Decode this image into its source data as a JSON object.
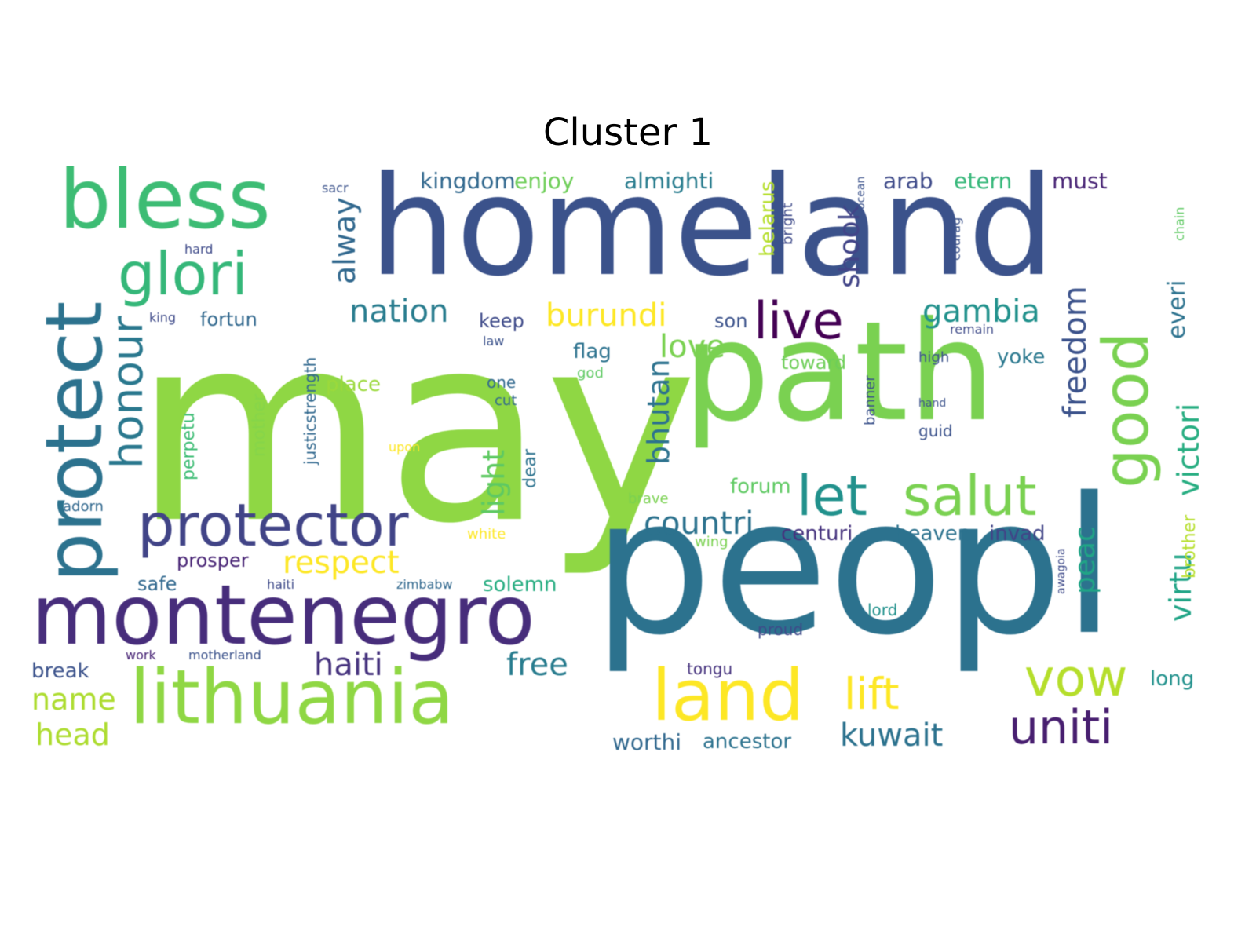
{
  "title": "Cluster 1",
  "palette": [
    "#440154",
    "#472d7b",
    "#3b528b",
    "#2c728e",
    "#21918c",
    "#28ae80",
    "#5ec962",
    "#addc30",
    "#fde725"
  ],
  "words": [
    {
      "text": "may",
      "color": "#8fd744"
    },
    {
      "text": "homeland",
      "color": "#3b528b"
    },
    {
      "text": "peopl",
      "color": "#2c728e"
    },
    {
      "text": "path",
      "color": "#7ad151"
    },
    {
      "text": "bless",
      "color": "#3dbc74"
    },
    {
      "text": "protect",
      "color": "#2c728e"
    },
    {
      "text": "montenegro",
      "color": "#472d7b"
    },
    {
      "text": "lithuania",
      "color": "#8fd744"
    },
    {
      "text": "protector",
      "color": "#414487"
    },
    {
      "text": "glori",
      "color": "#35b779"
    },
    {
      "text": "good",
      "color": "#7ad151"
    },
    {
      "text": "land",
      "color": "#fde725"
    },
    {
      "text": "let",
      "color": "#21918c"
    },
    {
      "text": "salut",
      "color": "#7ad151"
    },
    {
      "text": "live",
      "color": "#440154"
    },
    {
      "text": "vow",
      "color": "#b5de2b"
    },
    {
      "text": "uniti",
      "color": "#481f70"
    },
    {
      "text": "lift",
      "color": "#fde725"
    },
    {
      "text": "honour",
      "color": "#2a788e"
    },
    {
      "text": "haiti",
      "color": "#46337e"
    },
    {
      "text": "free",
      "color": "#287c8e"
    },
    {
      "text": "kuwait",
      "color": "#2c728e"
    },
    {
      "text": "gambia",
      "color": "#21918c"
    },
    {
      "text": "nation",
      "color": "#287c8e"
    },
    {
      "text": "burundi",
      "color": "#fde725"
    },
    {
      "text": "countri",
      "color": "#2c728e"
    },
    {
      "text": "respect",
      "color": "#fde725"
    },
    {
      "text": "love",
      "color": "#7ad151"
    },
    {
      "text": "freedom",
      "color": "#3b528b"
    },
    {
      "text": "victori",
      "color": "#27ad81"
    },
    {
      "text": "everi",
      "color": "#2c728e"
    },
    {
      "text": "virtu",
      "color": "#20a486"
    },
    {
      "text": "bhutan",
      "color": "#2c728e"
    },
    {
      "text": "light",
      "color": "#5ec962"
    },
    {
      "text": "alway",
      "color": "#31688e"
    },
    {
      "text": "shook",
      "color": "#414487"
    },
    {
      "text": "kingdom",
      "color": "#31688e"
    },
    {
      "text": "enjoy",
      "color": "#6ece58"
    },
    {
      "text": "almighti",
      "color": "#287c8e"
    },
    {
      "text": "arab",
      "color": "#3e4a89"
    },
    {
      "text": "etern",
      "color": "#35b779"
    },
    {
      "text": "must",
      "color": "#482475"
    },
    {
      "text": "name",
      "color": "#addc30"
    },
    {
      "text": "head",
      "color": "#addc30"
    },
    {
      "text": "break",
      "color": "#3b528b"
    },
    {
      "text": "worthi",
      "color": "#31688e"
    },
    {
      "text": "ancestor",
      "color": "#2c728e"
    },
    {
      "text": "centuri",
      "color": "#46337e"
    },
    {
      "text": "heaven",
      "color": "#2c728e"
    },
    {
      "text": "invad",
      "color": "#414487"
    },
    {
      "text": "peac",
      "color": "#20a486"
    },
    {
      "text": "solemn",
      "color": "#27ad81"
    },
    {
      "text": "prosper",
      "color": "#482475"
    },
    {
      "text": "safe",
      "color": "#31688e"
    },
    {
      "text": "fortun",
      "color": "#31688e"
    },
    {
      "text": "keep",
      "color": "#3e4a89"
    },
    {
      "text": "son",
      "color": "#3b528b"
    },
    {
      "text": "place",
      "color": "#9bd93c"
    },
    {
      "text": "toward",
      "color": "#6ece58"
    },
    {
      "text": "yoke",
      "color": "#2a788e"
    },
    {
      "text": "flag",
      "color": "#2c728e"
    },
    {
      "text": "forum",
      "color": "#5ec962"
    },
    {
      "text": "long",
      "color": "#21918c"
    },
    {
      "text": "tongu",
      "color": "#46337e"
    },
    {
      "text": "belarus",
      "color": "#b5de2b"
    },
    {
      "text": "brother",
      "color": "#b5de2b"
    },
    {
      "text": "mother",
      "color": "#86d549"
    },
    {
      "text": "justicstrength",
      "color": "#31688e"
    },
    {
      "text": "perpetu",
      "color": "#3dbc74"
    },
    {
      "text": "dear",
      "color": "#2c728e"
    },
    {
      "text": "adorn",
      "color": "#31688e"
    },
    {
      "text": "work",
      "color": "#482475"
    },
    {
      "text": "motherland",
      "color": "#3b528b"
    },
    {
      "text": "zimbabw",
      "color": "#31688e"
    },
    {
      "text": "haiti",
      "color": "#3e4a89"
    },
    {
      "text": "proud",
      "color": "#3e4a89"
    },
    {
      "text": "lord",
      "color": "#21918c"
    },
    {
      "text": "high",
      "color": "#3b528b"
    },
    {
      "text": "guid",
      "color": "#3b528b"
    },
    {
      "text": "banner",
      "color": "#3b528b"
    },
    {
      "text": "brave",
      "color": "#7ad151"
    },
    {
      "text": "wing",
      "color": "#7ad151"
    },
    {
      "text": "white",
      "color": "#fde725"
    },
    {
      "text": "upon",
      "color": "#fde725"
    },
    {
      "text": "one",
      "color": "#31688e"
    },
    {
      "text": "cut",
      "color": "#31688e"
    },
    {
      "text": "law",
      "color": "#3b528b"
    },
    {
      "text": "god",
      "color": "#5ec962"
    },
    {
      "text": "hard",
      "color": "#3e4a89"
    },
    {
      "text": "king",
      "color": "#3e4a89"
    },
    {
      "text": "sacr",
      "color": "#3b528b"
    },
    {
      "text": "remain",
      "color": "#3e4a89"
    },
    {
      "text": "hand",
      "color": "#3b528b"
    },
    {
      "text": "bright",
      "color": "#3e4a89"
    },
    {
      "text": "chain",
      "color": "#5ec962"
    },
    {
      "text": "awagoia",
      "color": "#3e4a89"
    },
    {
      "text": "ocean",
      "color": "#3b528b"
    },
    {
      "text": "courag",
      "color": "#3b528b"
    }
  ]
}
